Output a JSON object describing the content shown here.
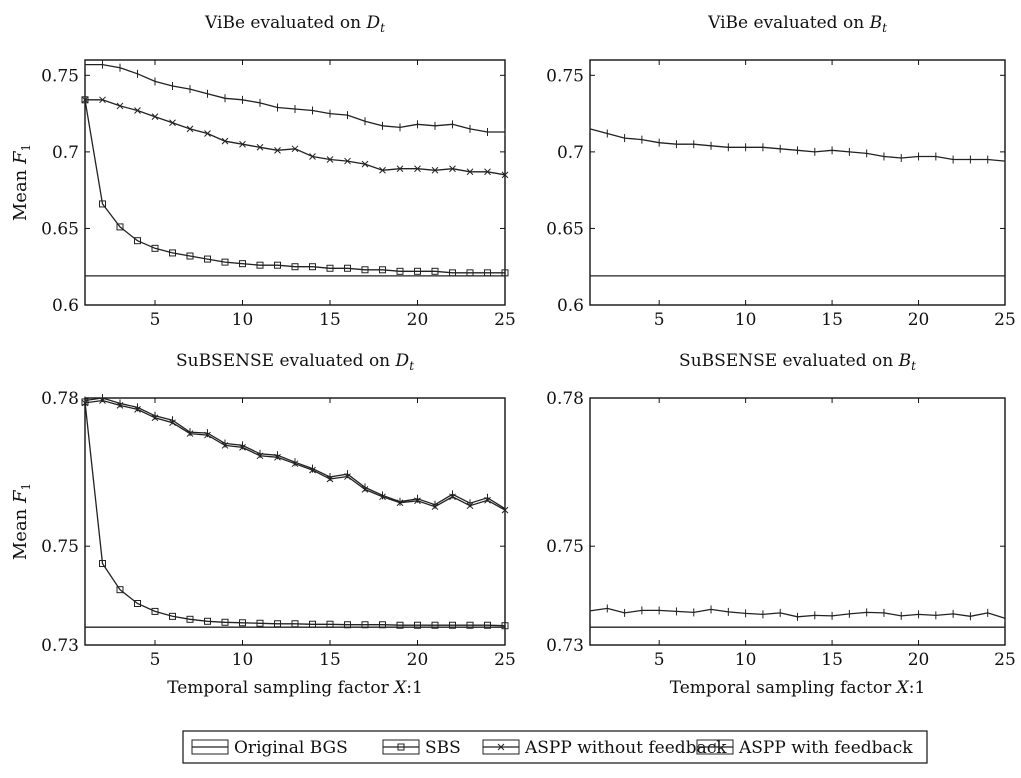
{
  "legend": {
    "items": [
      {
        "label": "Original BGS",
        "marker": "none"
      },
      {
        "label": "SBS",
        "marker": "square"
      },
      {
        "label": "ASPP without feedback",
        "marker": "cross"
      },
      {
        "label": "ASPP with feedback",
        "marker": "plus"
      }
    ]
  },
  "colors": {
    "line": "#222222",
    "axis": "#111111",
    "background": "#ffffff"
  },
  "chart_data": [
    {
      "type": "line",
      "title_prefix": "ViBe evaluated on ",
      "title_math": "D",
      "title_sub": "t",
      "xlabel": "",
      "ylabel": "Mean ",
      "ylabel_math": "F",
      "ylabel_sub": "1",
      "xlim": [
        1,
        25
      ],
      "ylim": [
        0.6,
        0.76
      ],
      "xticks": [
        5,
        10,
        15,
        20,
        25
      ],
      "xtick_labels": [
        "5",
        "10",
        "15",
        "20",
        "25"
      ],
      "yticks": [
        0.6,
        0.65,
        0.7,
        0.75
      ],
      "ytick_labels": [
        "0.6",
        "0.65",
        "0.7",
        "0.75"
      ],
      "series": [
        {
          "name": "Original BGS",
          "marker": "none",
          "x": [
            1,
            25
          ],
          "values": [
            0.619,
            0.619
          ]
        },
        {
          "name": "SBS",
          "marker": "square",
          "x": [
            1,
            2,
            3,
            4,
            5,
            6,
            7,
            8,
            9,
            10,
            11,
            12,
            13,
            14,
            15,
            16,
            17,
            18,
            19,
            20,
            21,
            22,
            23,
            24,
            25
          ],
          "values": [
            0.734,
            0.666,
            0.651,
            0.642,
            0.637,
            0.634,
            0.632,
            0.63,
            0.628,
            0.627,
            0.626,
            0.626,
            0.625,
            0.625,
            0.624,
            0.624,
            0.623,
            0.623,
            0.622,
            0.622,
            0.622,
            0.621,
            0.621,
            0.621,
            0.621
          ]
        },
        {
          "name": "ASPP without feedback",
          "marker": "cross",
          "x": [
            1,
            2,
            3,
            4,
            5,
            6,
            7,
            8,
            9,
            10,
            11,
            12,
            13,
            14,
            15,
            16,
            17,
            18,
            19,
            20,
            21,
            22,
            23,
            24,
            25
          ],
          "values": [
            0.734,
            0.734,
            0.73,
            0.727,
            0.723,
            0.719,
            0.715,
            0.712,
            0.707,
            0.705,
            0.703,
            0.701,
            0.702,
            0.697,
            0.695,
            0.694,
            0.692,
            0.688,
            0.689,
            0.689,
            0.688,
            0.689,
            0.687,
            0.687,
            0.685
          ]
        },
        {
          "name": "ASPP with feedback",
          "marker": "plus",
          "x": [
            1,
            2,
            3,
            4,
            5,
            6,
            7,
            8,
            9,
            10,
            11,
            12,
            13,
            14,
            15,
            16,
            17,
            18,
            19,
            20,
            21,
            22,
            23,
            24,
            25
          ],
          "values": [
            0.757,
            0.757,
            0.755,
            0.751,
            0.746,
            0.743,
            0.741,
            0.738,
            0.735,
            0.734,
            0.732,
            0.729,
            0.728,
            0.727,
            0.725,
            0.724,
            0.72,
            0.717,
            0.716,
            0.718,
            0.717,
            0.718,
            0.715,
            0.713,
            0.713
          ]
        }
      ]
    },
    {
      "type": "line",
      "title_prefix": "ViBe evaluated on ",
      "title_math": "B",
      "title_sub": "t",
      "xlabel": "",
      "ylabel": "",
      "xlim": [
        1,
        25
      ],
      "ylim": [
        0.6,
        0.76
      ],
      "xticks": [
        5,
        10,
        15,
        20,
        25
      ],
      "xtick_labels": [
        "5",
        "10",
        "15",
        "20",
        "25"
      ],
      "yticks": [
        0.6,
        0.65,
        0.7,
        0.75
      ],
      "ytick_labels": [
        "0.6",
        "0.65",
        "0.7",
        "0.75"
      ],
      "series": [
        {
          "name": "Original BGS",
          "marker": "none",
          "x": [
            1,
            25
          ],
          "values": [
            0.619,
            0.619
          ]
        },
        {
          "name": "ASPP with feedback",
          "marker": "plus",
          "x": [
            1,
            2,
            3,
            4,
            5,
            6,
            7,
            8,
            9,
            10,
            11,
            12,
            13,
            14,
            15,
            16,
            17,
            18,
            19,
            20,
            21,
            22,
            23,
            24,
            25
          ],
          "values": [
            0.715,
            0.712,
            0.709,
            0.708,
            0.706,
            0.705,
            0.705,
            0.704,
            0.703,
            0.703,
            0.703,
            0.702,
            0.701,
            0.7,
            0.701,
            0.7,
            0.699,
            0.697,
            0.696,
            0.697,
            0.697,
            0.695,
            0.695,
            0.695,
            0.694
          ]
        }
      ]
    },
    {
      "type": "line",
      "title_prefix": "SuBSENSE evaluated on ",
      "title_math": "D",
      "title_sub": "t",
      "xlabel": "Temporal sampling factor ",
      "xlabel_math": "X",
      "xlabel_suffix": ":1",
      "ylabel": "Mean ",
      "ylabel_math": "F",
      "ylabel_sub": "1",
      "xlim": [
        1,
        25
      ],
      "ylim": [
        0.73,
        0.78
      ],
      "xticks": [
        5,
        10,
        15,
        20,
        25
      ],
      "xtick_labels": [
        "5",
        "10",
        "15",
        "20",
        "25"
      ],
      "yticks": [
        0.73,
        0.75,
        0.78
      ],
      "ytick_labels": [
        "0.73",
        "0.75",
        "0.78"
      ],
      "series": [
        {
          "name": "Original BGS",
          "marker": "none",
          "x": [
            1,
            25
          ],
          "values": [
            0.7336,
            0.7336
          ]
        },
        {
          "name": "SBS",
          "marker": "square",
          "x": [
            1,
            2,
            3,
            4,
            5,
            6,
            7,
            8,
            9,
            10,
            11,
            12,
            13,
            14,
            15,
            16,
            17,
            18,
            19,
            20,
            21,
            22,
            23,
            24,
            25
          ],
          "values": [
            0.7792,
            0.7465,
            0.7412,
            0.7384,
            0.7368,
            0.7358,
            0.7352,
            0.7348,
            0.7346,
            0.7345,
            0.7344,
            0.7343,
            0.7343,
            0.7342,
            0.7342,
            0.7341,
            0.7341,
            0.7341,
            0.734,
            0.734,
            0.734,
            0.734,
            0.734,
            0.734,
            0.7339
          ]
        },
        {
          "name": "ASPP without feedback",
          "marker": "cross",
          "x": [
            1,
            2,
            3,
            4,
            5,
            6,
            7,
            8,
            9,
            10,
            11,
            12,
            13,
            14,
            15,
            16,
            17,
            18,
            19,
            20,
            21,
            22,
            23,
            24,
            25
          ],
          "values": [
            0.779,
            0.7795,
            0.7785,
            0.7777,
            0.776,
            0.775,
            0.7728,
            0.7725,
            0.7704,
            0.77,
            0.7683,
            0.768,
            0.7667,
            0.7654,
            0.7636,
            0.7641,
            0.7615,
            0.76,
            0.7588,
            0.7592,
            0.758,
            0.76,
            0.7582,
            0.7593,
            0.7573
          ]
        },
        {
          "name": "ASPP with feedback",
          "marker": "plus",
          "x": [
            1,
            2,
            3,
            4,
            5,
            6,
            7,
            8,
            9,
            10,
            11,
            12,
            13,
            14,
            15,
            16,
            17,
            18,
            19,
            20,
            21,
            22,
            23,
            24,
            25
          ],
          "values": [
            0.7795,
            0.78,
            0.7789,
            0.7781,
            0.7764,
            0.7755,
            0.7731,
            0.7729,
            0.7708,
            0.7704,
            0.7687,
            0.7684,
            0.767,
            0.7657,
            0.764,
            0.7646,
            0.7619,
            0.7603,
            0.759,
            0.7596,
            0.7584,
            0.7605,
            0.7587,
            0.7598,
            0.7576
          ]
        }
      ]
    },
    {
      "type": "line",
      "title_prefix": "SuBSENSE evaluated on ",
      "title_math": "B",
      "title_sub": "t",
      "xlabel": "Temporal sampling factor ",
      "xlabel_math": "X",
      "xlabel_suffix": ":1",
      "ylabel": "",
      "xlim": [
        1,
        25
      ],
      "ylim": [
        0.73,
        0.78
      ],
      "xticks": [
        5,
        10,
        15,
        20,
        25
      ],
      "xtick_labels": [
        "5",
        "10",
        "15",
        "20",
        "25"
      ],
      "yticks": [
        0.73,
        0.75,
        0.78
      ],
      "ytick_labels": [
        "0.73",
        "0.75",
        "0.78"
      ],
      "series": [
        {
          "name": "Original BGS",
          "marker": "none",
          "x": [
            1,
            25
          ],
          "values": [
            0.7336,
            0.7336
          ]
        },
        {
          "name": "ASPP with feedback",
          "marker": "plus",
          "x": [
            1,
            2,
            3,
            4,
            5,
            6,
            7,
            8,
            9,
            10,
            11,
            12,
            13,
            14,
            15,
            16,
            17,
            18,
            19,
            20,
            21,
            22,
            23,
            24,
            25
          ],
          "values": [
            0.7369,
            0.7374,
            0.7365,
            0.737,
            0.737,
            0.7368,
            0.7366,
            0.7372,
            0.7367,
            0.7364,
            0.7362,
            0.7365,
            0.7357,
            0.736,
            0.7359,
            0.7363,
            0.7366,
            0.7365,
            0.7359,
            0.7362,
            0.736,
            0.7363,
            0.7358,
            0.7365,
            0.7354
          ]
        }
      ]
    }
  ]
}
